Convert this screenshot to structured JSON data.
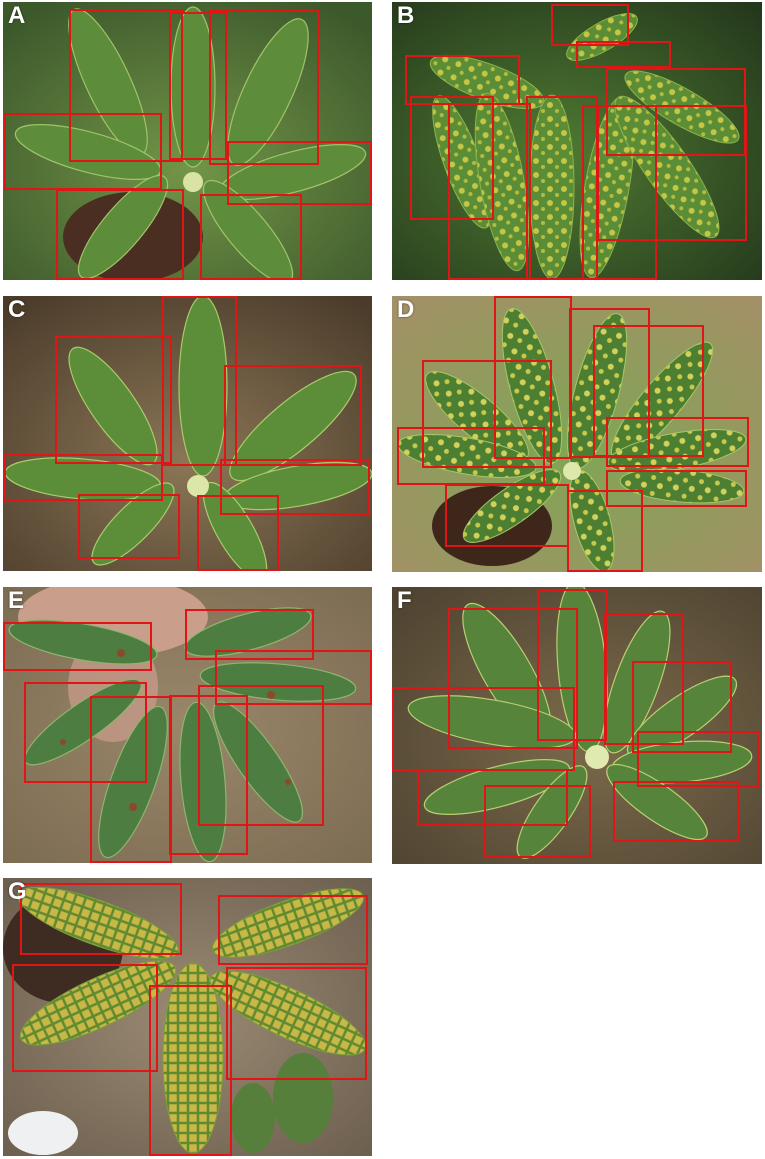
{
  "panels": [
    {
      "label": "A",
      "tone": "healthy"
    },
    {
      "label": "B",
      "tone": "mosaic"
    },
    {
      "label": "C",
      "tone": "healthy-dry-soil"
    },
    {
      "label": "D",
      "tone": "mosaic-spotted"
    },
    {
      "label": "E",
      "tone": "brown-leaf-spot"
    },
    {
      "label": "F",
      "tone": "healthy-yellowing"
    },
    {
      "label": "G",
      "tone": "severe-mosaic"
    }
  ],
  "colors": {
    "bbox": "#e01515",
    "label": "#ffffff",
    "leaf_dark": "#3f6a2b",
    "leaf_light": "#8fb54a",
    "mosaic_yellow": "#c7c441",
    "soil": "#a8936f"
  }
}
